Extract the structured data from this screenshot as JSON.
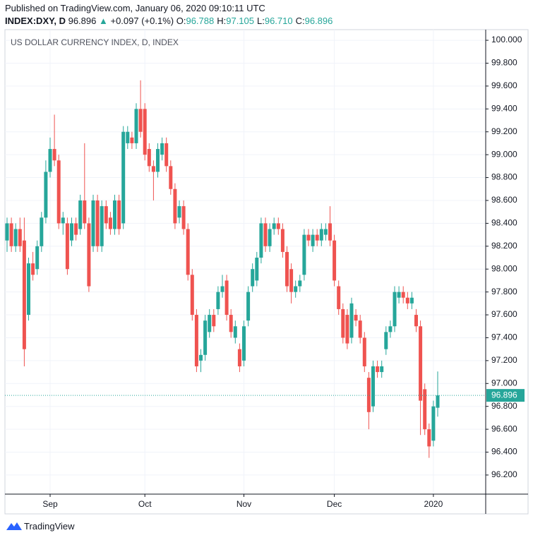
{
  "header": {
    "published": "Published on TradingView.com, January 06, 2020 09:10:11 UTC",
    "symbol": "INDEX:DXY, D",
    "last": "96.896",
    "arrow": "▲",
    "change": "+0.097 (+0.1%)",
    "ohlc": [
      {
        "label": "O:",
        "value": "96.788"
      },
      {
        "label": "H:",
        "value": "97.105"
      },
      {
        "label": "L:",
        "value": "96.710"
      },
      {
        "label": "C:",
        "value": "96.896"
      }
    ]
  },
  "footer": {
    "brand": "TradingView"
  },
  "chart_data": {
    "type": "candlestick",
    "title": "US DOLLAR CURRENCY INDEX, D, INDEX",
    "up_color": "#26a69a",
    "down_color": "#ef5350",
    "grid": true,
    "last_price": 96.896,
    "categories": [
      null,
      null,
      null,
      null,
      null,
      null,
      null,
      null,
      null,
      null,
      "Sep",
      null,
      null,
      null,
      null,
      null,
      null,
      null,
      null,
      null,
      null,
      null,
      null,
      null,
      null,
      null,
      null,
      null,
      null,
      null,
      null,
      null,
      "Oct",
      null,
      null,
      null,
      null,
      null,
      null,
      null,
      null,
      null,
      null,
      null,
      null,
      null,
      null,
      null,
      null,
      null,
      null,
      null,
      null,
      null,
      null,
      "Nov",
      null,
      null,
      null,
      null,
      null,
      null,
      null,
      null,
      null,
      null,
      null,
      null,
      null,
      null,
      null,
      null,
      null,
      null,
      null,
      null,
      "Dec",
      null,
      null,
      null,
      null,
      null,
      null,
      null,
      null,
      null,
      null,
      null,
      null,
      null,
      null,
      null,
      null,
      null,
      null,
      null,
      null,
      null,
      null,
      "2020",
      null
    ],
    "open": [
      98.25,
      98.4,
      98.2,
      98.35,
      98.25,
      97.6,
      98.05,
      98.0,
      98.2,
      98.45,
      98.85,
      99.05,
      98.95,
      98.4,
      98.4,
      98.25,
      98.4,
      98.35,
      98.6,
      98.4,
      98.2,
      98.6,
      98.2,
      98.55,
      98.45,
      98.35,
      98.6,
      98.4,
      99.1,
      99.15,
      99.1,
      99.4,
      99.4,
      99.05,
      98.9,
      98.85,
      99.0,
      99.1,
      98.9,
      98.7,
      98.45,
      98.55,
      98.35,
      97.95,
      97.6,
      97.2,
      97.25,
      97.45,
      97.6,
      97.65,
      97.8,
      97.9,
      97.6,
      97.4,
      97.3,
      97.2,
      97.55,
      97.85,
      97.9,
      98.1,
      98.4,
      98.2,
      98.35,
      98.4,
      98.35,
      98.15,
      98.0,
      97.8,
      97.85,
      97.95,
      98.3,
      98.2,
      98.3,
      98.25,
      98.3,
      98.4,
      98.25,
      97.85,
      97.65,
      97.6,
      97.4,
      97.6,
      97.55,
      97.4,
      97.05,
      96.8,
      97.15,
      97.1,
      97.3,
      97.45,
      97.5,
      97.75,
      97.8,
      97.75,
      97.7,
      97.6,
      97.5,
      96.95,
      96.6,
      96.5,
      96.788
    ],
    "high": [
      98.45,
      98.45,
      98.4,
      98.45,
      98.45,
      98.1,
      98.15,
      98.25,
      98.5,
      98.95,
      99.15,
      99.35,
      99.0,
      98.5,
      98.45,
      98.45,
      98.45,
      98.65,
      99.1,
      98.45,
      98.65,
      98.65,
      98.6,
      98.6,
      98.5,
      98.65,
      98.65,
      99.25,
      99.25,
      99.2,
      99.45,
      99.65,
      99.45,
      99.1,
      98.95,
      99.1,
      99.15,
      99.15,
      98.95,
      98.75,
      98.6,
      98.6,
      98.4,
      98.0,
      97.65,
      97.3,
      97.6,
      97.65,
      97.65,
      97.85,
      97.95,
      97.95,
      97.65,
      97.55,
      97.35,
      97.55,
      97.85,
      98.05,
      98.15,
      98.45,
      98.45,
      98.4,
      98.45,
      98.45,
      98.4,
      98.2,
      98.05,
      97.9,
      97.95,
      98.35,
      98.35,
      98.35,
      98.35,
      98.4,
      98.4,
      98.55,
      98.3,
      97.9,
      97.7,
      97.65,
      97.75,
      97.65,
      97.6,
      97.45,
      97.1,
      97.2,
      97.2,
      97.2,
      97.5,
      97.55,
      97.85,
      97.85,
      97.85,
      97.8,
      97.8,
      97.65,
      97.55,
      97.0,
      96.65,
      96.85,
      97.105
    ],
    "low": [
      98.15,
      98.15,
      98.15,
      98.15,
      97.15,
      97.55,
      97.9,
      97.95,
      98.15,
      98.4,
      98.8,
      98.9,
      98.35,
      98.3,
      97.95,
      98.2,
      98.25,
      98.3,
      98.35,
      97.8,
      98.15,
      98.15,
      98.15,
      98.35,
      98.3,
      98.3,
      98.3,
      98.35,
      99.05,
      99.05,
      99.05,
      99.15,
      98.95,
      98.85,
      98.6,
      98.8,
      98.95,
      98.85,
      98.65,
      98.35,
      98.4,
      98.3,
      97.9,
      97.55,
      97.1,
      97.1,
      97.2,
      97.4,
      97.45,
      97.6,
      97.75,
      97.55,
      97.4,
      97.35,
      97.1,
      97.15,
      97.5,
      97.8,
      97.85,
      98.05,
      98.15,
      98.15,
      98.3,
      98.3,
      98.1,
      97.8,
      97.7,
      97.75,
      97.8,
      97.9,
      98.2,
      98.15,
      98.2,
      98.2,
      98.25,
      98.2,
      97.85,
      97.6,
      97.35,
      97.3,
      97.35,
      97.5,
      97.35,
      97.1,
      96.6,
      96.75,
      97.05,
      97.05,
      97.25,
      97.4,
      97.45,
      97.7,
      97.7,
      97.65,
      97.65,
      97.45,
      96.55,
      96.55,
      96.35,
      96.45,
      96.71
    ],
    "close": [
      98.4,
      98.2,
      98.35,
      98.2,
      97.3,
      98.05,
      97.95,
      98.2,
      98.45,
      98.85,
      99.05,
      98.95,
      98.4,
      98.45,
      98.0,
      98.4,
      98.3,
      98.6,
      98.4,
      97.85,
      98.6,
      98.2,
      98.55,
      98.4,
      98.35,
      98.6,
      98.35,
      99.2,
      99.2,
      99.1,
      99.4,
      99.2,
      99.0,
      98.9,
      98.85,
      99.05,
      99.1,
      98.9,
      98.7,
      98.4,
      98.55,
      98.35,
      97.95,
      97.6,
      97.15,
      97.25,
      97.55,
      97.6,
      97.5,
      97.8,
      97.85,
      97.6,
      97.45,
      97.5,
      97.15,
      97.5,
      97.8,
      98.0,
      98.1,
      98.4,
      98.2,
      98.35,
      98.4,
      98.35,
      98.15,
      97.85,
      97.8,
      97.85,
      97.9,
      98.3,
      98.25,
      98.3,
      98.25,
      98.35,
      98.35,
      98.25,
      97.9,
      97.65,
      97.4,
      97.35,
      97.7,
      97.55,
      97.4,
      97.15,
      96.75,
      97.15,
      97.1,
      97.15,
      97.45,
      97.5,
      97.8,
      97.8,
      97.75,
      97.7,
      97.75,
      97.5,
      96.85,
      96.6,
      96.45,
      96.8,
      96.896
    ],
    "ylim": [
      96.033,
      100.093
    ],
    "yticks": [
      {
        "value": 96.2,
        "label": "96.200"
      },
      {
        "value": 96.4,
        "label": "96.400"
      },
      {
        "value": 96.6,
        "label": "96.600"
      },
      {
        "value": 96.8,
        "label": "96.800"
      },
      {
        "value": 97.0,
        "label": "97.000"
      },
      {
        "value": 97.2,
        "label": "97.200"
      },
      {
        "value": 97.4,
        "label": "97.400"
      },
      {
        "value": 97.6,
        "label": "97.600"
      },
      {
        "value": 97.8,
        "label": "97.800"
      },
      {
        "value": 98.0,
        "label": "98.000"
      },
      {
        "value": 98.2,
        "label": "98.200"
      },
      {
        "value": 98.4,
        "label": "98.400"
      },
      {
        "value": 98.6,
        "label": "98.600"
      },
      {
        "value": 98.8,
        "label": "98.800"
      },
      {
        "value": 99.0,
        "label": "99.000"
      },
      {
        "value": 99.2,
        "label": "99.200"
      },
      {
        "value": 99.4,
        "label": "99.400"
      },
      {
        "value": 99.6,
        "label": "99.600"
      },
      {
        "value": 99.8,
        "label": "99.800"
      },
      {
        "value": 100.0,
        "label": "100.000"
      }
    ]
  }
}
